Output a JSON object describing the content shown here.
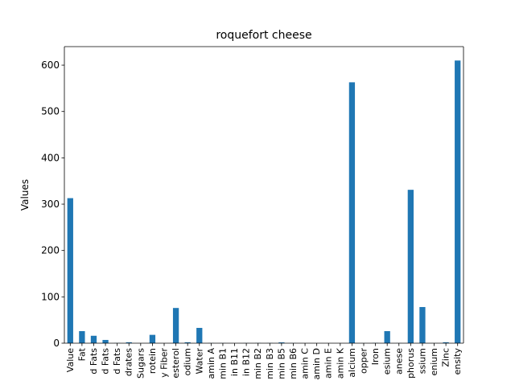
{
  "chart_data": {
    "type": "bar",
    "title": "roquefort cheese",
    "xlabel": "",
    "ylabel": "Values",
    "ylim": [
      0,
      640
    ],
    "yticks": [
      0,
      100,
      200,
      300,
      400,
      500,
      600
    ],
    "grid": false,
    "legend": "none",
    "bar_color": "#1f77b4",
    "categories": [
      "Value",
      "Fat",
      "d Fats",
      "d Fats",
      "d Fats",
      "drates",
      "Sugars",
      "rotein",
      "y Fiber",
      "esterol",
      "odium",
      "Water",
      "amin A",
      "min B1",
      "in B11",
      "in B12",
      "min B2",
      "min B3",
      "min B5",
      "min B6",
      "amin C",
      "amin D",
      "amin E",
      "amin K",
      "alcium",
      "opper",
      "Iron",
      "esium",
      "anese",
      "phorus",
      "ssium",
      "enium",
      "Zinc",
      "ensity"
    ],
    "values": [
      313,
      26,
      16,
      7,
      0.4,
      2,
      0,
      18,
      0,
      76,
      2,
      33,
      0.3,
      0.2,
      0,
      0.3,
      0.4,
      0.4,
      1.7,
      0.3,
      0,
      0,
      0,
      0,
      563,
      0.1,
      0.6,
      26,
      0.2,
      331,
      78,
      0.1,
      2,
      610
    ]
  }
}
